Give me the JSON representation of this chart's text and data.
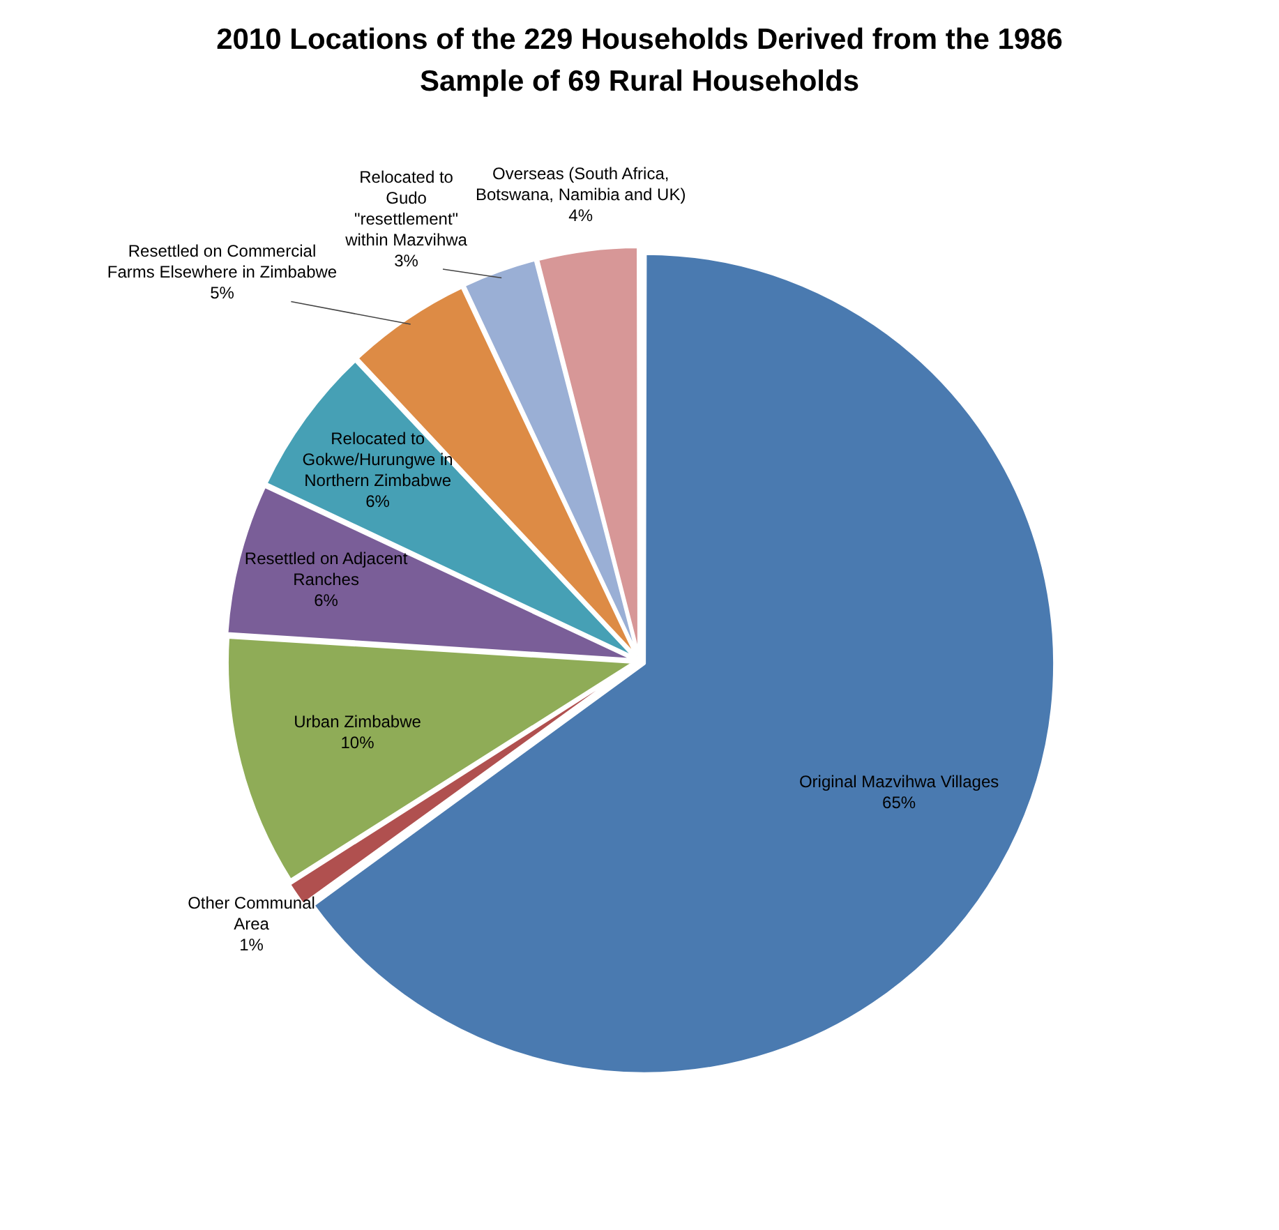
{
  "chart_data": {
    "type": "pie",
    "title": "2010 Locations of the 229 Households Derived from the 1986 Sample of 69 Rural Households",
    "categories": [
      "Original Mazvihwa Villages",
      "Other Communal Area",
      "Urban Zimbabwe",
      "Resettled on Adjacent Ranches",
      "Relocated to Gokwe/Hurungwe in Northern Zimbabwe",
      "Resettled on Commercial Farms Elsewhere in Zimbabwe",
      "Relocated to Gudo \"resettlement\" within Mazvihwa",
      "Overseas (South Africa, Botswana, Namibia and UK)"
    ],
    "values": [
      65,
      1,
      10,
      6,
      6,
      5,
      3,
      4
    ],
    "colors": [
      "#4a7ab0",
      "#b0504f",
      "#8fac57",
      "#7a5e98",
      "#46a0b5",
      "#dd8b45",
      "#9aafd5",
      "#d79797"
    ],
    "value_labels": [
      "65%",
      "1%",
      "10%",
      "6%",
      "6%",
      "5%",
      "3%",
      "4%"
    ],
    "legend": false
  }
}
